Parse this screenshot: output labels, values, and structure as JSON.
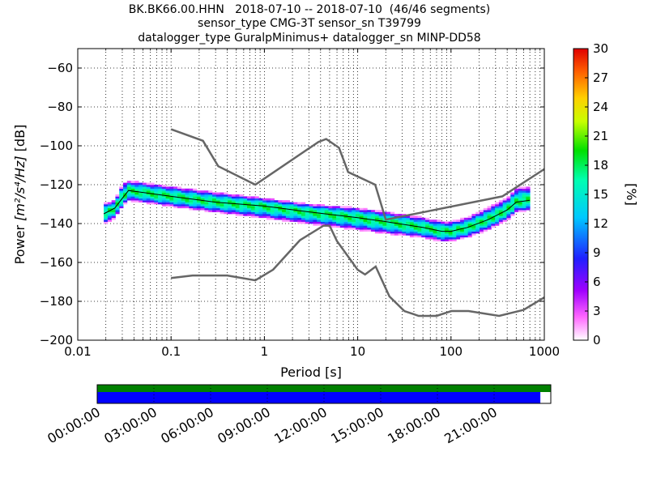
{
  "title_lines": [
    "BK.BK66.00.HHN   2018-07-10 -- 2018-07-10  (46/46 segments)",
    "sensor_type CMG-3T sensor_sn T39799",
    "datalogger_type GuralpMinimus+ datalogger_sn MINP-DD58"
  ],
  "chart_data": {
    "type": "heatmap",
    "xlabel": "Period [s]",
    "ylabel_prefix": "Power ",
    "ylabel_units": "[m²/s⁴/Hz]",
    "ylabel_suffix": " [dB]",
    "x_scale": "log",
    "xlim": [
      0.01,
      1000
    ],
    "ylim": [
      -200,
      -50
    ],
    "x_ticks": [
      0.01,
      0.1,
      1,
      10,
      100,
      1000
    ],
    "x_tick_labels": [
      "0.01",
      "0.1",
      "1",
      "10",
      "100",
      "1000"
    ],
    "y_ticks": [
      -200,
      -180,
      -160,
      -140,
      -120,
      -100,
      -80,
      -60
    ],
    "y_tick_labels": [
      "−200",
      "−180",
      "−160",
      "−140",
      "−120",
      "−100",
      "−80",
      "−60"
    ],
    "grid": true,
    "colorbar": {
      "label": "[%]",
      "range": [
        0,
        30
      ],
      "ticks": [
        0,
        3,
        6,
        9,
        12,
        15,
        18,
        21,
        24,
        27,
        30
      ],
      "tick_labels": [
        "0",
        "3",
        "6",
        "9",
        "12",
        "15",
        "18",
        "21",
        "24",
        "27",
        "30"
      ]
    },
    "noise_models": {
      "color": "#666666",
      "high": [
        [
          0.1,
          -91.5
        ],
        [
          0.22,
          -97.4
        ],
        [
          0.32,
          -110.5
        ],
        [
          0.8,
          -120
        ],
        [
          3.8,
          -98
        ],
        [
          4.6,
          -96.5
        ],
        [
          6.3,
          -101
        ],
        [
          7.9,
          -113.5
        ],
        [
          15.4,
          -120
        ],
        [
          20,
          -138
        ],
        [
          354.8,
          -126
        ],
        [
          1000,
          -112
        ]
      ],
      "low": [
        [
          0.1,
          -168
        ],
        [
          0.17,
          -166.7
        ],
        [
          0.4,
          -166.7
        ],
        [
          0.8,
          -169.2
        ],
        [
          1.24,
          -163.7
        ],
        [
          2.4,
          -148.6
        ],
        [
          4.3,
          -141.1
        ],
        [
          5.0,
          -141.1
        ],
        [
          6.0,
          -149
        ],
        [
          10.0,
          -163.8
        ],
        [
          12,
          -166.2
        ],
        [
          15.6,
          -162.1
        ],
        [
          21.9,
          -177.5
        ],
        [
          31.6,
          -185
        ],
        [
          45,
          -187.5
        ],
        [
          70,
          -187.5
        ],
        [
          101,
          -185
        ],
        [
          154,
          -185
        ],
        [
          328,
          -187.5
        ],
        [
          600,
          -184.4
        ],
        [
          1000,
          -178
        ]
      ]
    },
    "median": [
      [
        0.019,
        -135
      ],
      [
        0.025,
        -132
      ],
      [
        0.03,
        -127
      ],
      [
        0.035,
        -123
      ],
      [
        0.05,
        -124
      ],
      [
        0.1,
        -126
      ],
      [
        0.3,
        -129
      ],
      [
        1,
        -131
      ],
      [
        3,
        -134
      ],
      [
        10,
        -137
      ],
      [
        20,
        -139
      ],
      [
        50,
        -142
      ],
      [
        80,
        -144
      ],
      [
        100,
        -144
      ],
      [
        150,
        -142
      ],
      [
        250,
        -138
      ],
      [
        400,
        -133
      ],
      [
        500,
        -129
      ],
      [
        700,
        -128
      ]
    ],
    "psd_band": {
      "period": [
        0.019,
        0.025,
        0.03,
        0.035,
        0.05,
        0.1,
        0.3,
        1,
        3,
        10,
        20,
        50,
        80,
        100,
        150,
        250,
        400,
        500,
        700
      ],
      "low_dB": [
        -140,
        -137,
        -131,
        -128,
        -129,
        -131,
        -134,
        -137,
        -140,
        -143,
        -145,
        -147,
        -149,
        -149,
        -147,
        -143,
        -138,
        -134,
        -133
      ],
      "high_dB": [
        -130,
        -128,
        -120,
        -118,
        -119,
        -121,
        -124,
        -127,
        -130,
        -132,
        -134,
        -137,
        -139,
        -139,
        -137,
        -132,
        -127,
        -122,
        -121
      ]
    }
  },
  "timeline": {
    "labels": [
      "00:00:00",
      "03:00:00",
      "06:00:00",
      "09:00:00",
      "12:00:00",
      "15:00:00",
      "18:00:00",
      "21:00:00"
    ],
    "data_color": "#0000ff",
    "coverage_color": "#008000",
    "data_end_fraction": 0.977
  }
}
